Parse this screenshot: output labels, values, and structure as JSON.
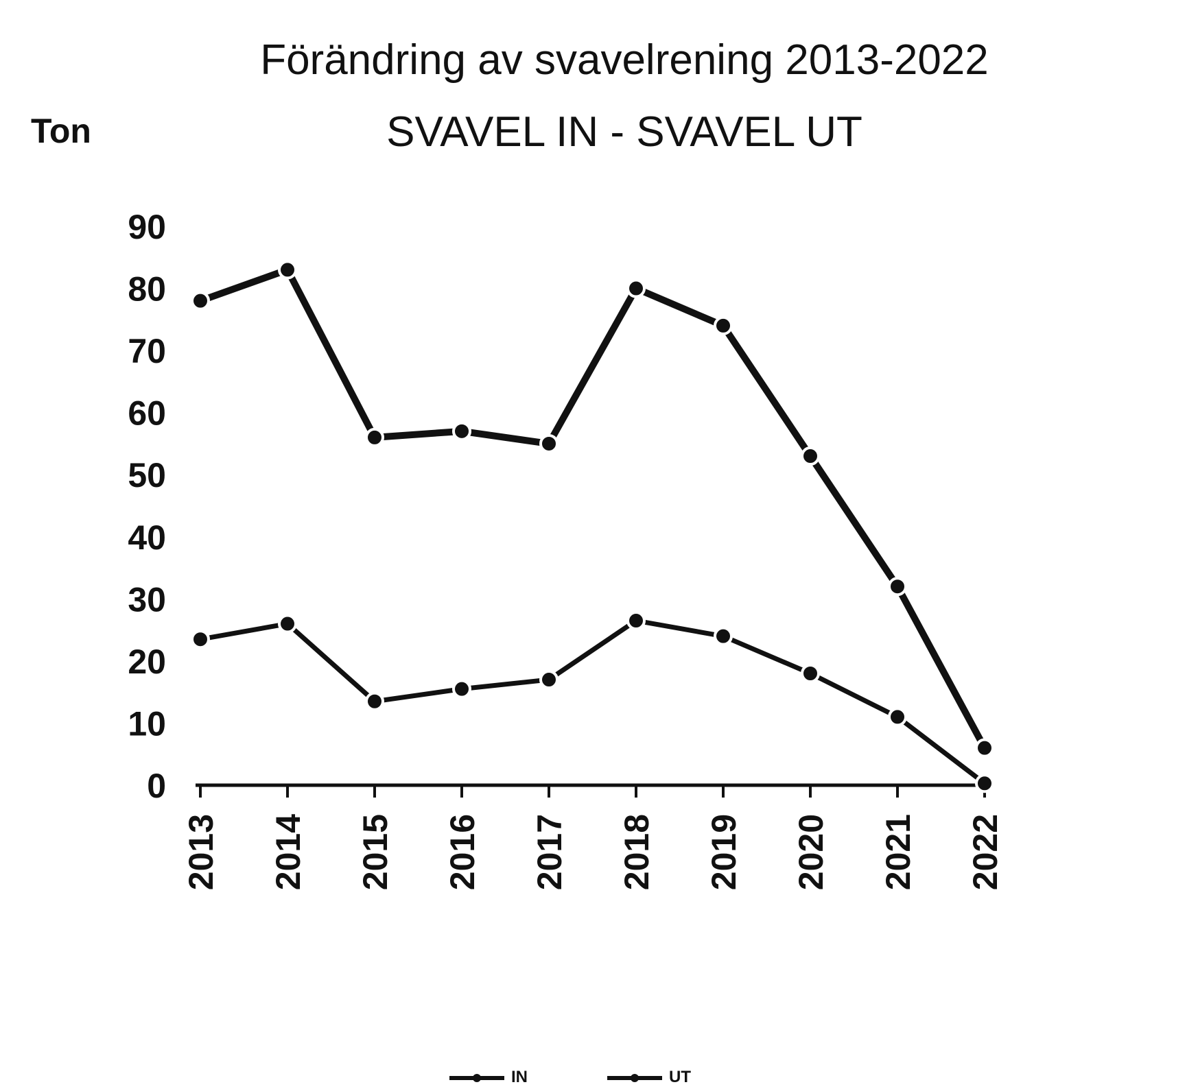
{
  "chart_data": {
    "type": "line",
    "title": "Förändring av svavelrening  2013-2022",
    "subtitle": "SVAVEL IN - SVAVEL UT",
    "y_label": "Ton",
    "categories": [
      "2013",
      "2014",
      "2015",
      "2016",
      "2017",
      "2018",
      "2019",
      "2020",
      "2021",
      "2022"
    ],
    "series": [
      {
        "name": "IN",
        "color": "#111111",
        "values": [
          78,
          83,
          56,
          57,
          55,
          80,
          74,
          53,
          32,
          6
        ]
      },
      {
        "name": "UT",
        "color": "#111111",
        "values": [
          23.5,
          26,
          13.5,
          15.5,
          17,
          26.5,
          24,
          18,
          11,
          0.3
        ]
      }
    ],
    "ylim": [
      0,
      90
    ],
    "yticks": [
      0,
      10,
      20,
      30,
      40,
      50,
      60,
      70,
      80,
      90
    ],
    "legend": "bottom"
  }
}
